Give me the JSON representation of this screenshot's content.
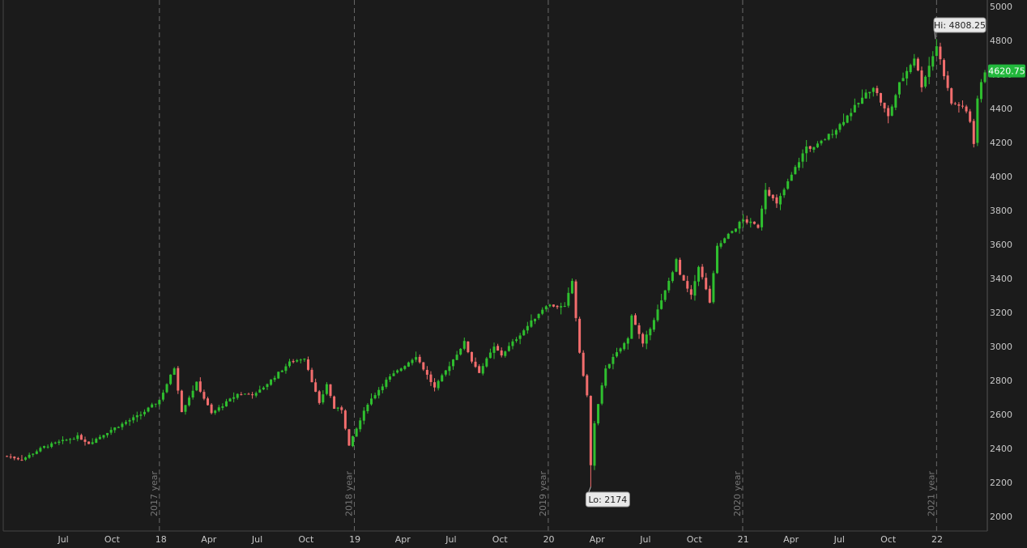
{
  "colors": {
    "background": "#1b1b1b",
    "up": "#2fbf2f",
    "down": "#f26d6d",
    "axis_text": "#c8c8c8",
    "separator": "#6a6a6a",
    "price_badge": "#22b83c"
  },
  "info_icon": "info-icon",
  "chart_data": {
    "type": "candlestick",
    "x_range": [
      "2017-03",
      "2022-03"
    ],
    "ylim": [
      1900,
      5000
    ],
    "y_ticks": [
      2000,
      2200,
      2400,
      2600,
      2800,
      3000,
      3200,
      3400,
      3600,
      3800,
      4000,
      4200,
      4400,
      4600,
      4800,
      5000
    ],
    "x_ticks": [
      {
        "date": "2017-07",
        "label": "Jul"
      },
      {
        "date": "2017-10",
        "label": "Oct"
      },
      {
        "date": "2018-01",
        "label": "18"
      },
      {
        "date": "2018-04",
        "label": "Apr"
      },
      {
        "date": "2018-07",
        "label": "Jul"
      },
      {
        "date": "2018-10",
        "label": "Oct"
      },
      {
        "date": "2019-01",
        "label": "19"
      },
      {
        "date": "2019-04",
        "label": "Apr"
      },
      {
        "date": "2019-07",
        "label": "Jul"
      },
      {
        "date": "2019-10",
        "label": "Oct"
      },
      {
        "date": "2020-01",
        "label": "20"
      },
      {
        "date": "2020-04",
        "label": "Apr"
      },
      {
        "date": "2020-07",
        "label": "Jul"
      },
      {
        "date": "2020-10",
        "label": "Oct"
      },
      {
        "date": "2021-01",
        "label": "21"
      },
      {
        "date": "2021-04",
        "label": "Apr"
      },
      {
        "date": "2021-07",
        "label": "Jul"
      },
      {
        "date": "2021-10",
        "label": "Oct"
      },
      {
        "date": "2022-01",
        "label": "22"
      }
    ],
    "year_separators": [
      {
        "date": "2017-12-29",
        "label": "2017 year"
      },
      {
        "date": "2018-12-31",
        "label": "2018 year"
      },
      {
        "date": "2019-12-31",
        "label": "2019 year"
      },
      {
        "date": "2020-12-31",
        "label": "2020 year"
      },
      {
        "date": "2021-12-31",
        "label": "2021 year"
      }
    ],
    "annotations": {
      "high": {
        "label": "Hi: 4808.25",
        "value": 4808.25,
        "date": "2021-12-29"
      },
      "low": {
        "label": "Lo: 2174",
        "value": 2174,
        "date": "2020-03-20"
      },
      "last_price": {
        "label": "4620.75",
        "value": 4620.75
      }
    },
    "anchors": [
      [
        "2017-03-17",
        2355
      ],
      [
        "2017-04-14",
        2335
      ],
      [
        "2017-05-26",
        2410
      ],
      [
        "2017-07-28",
        2470
      ],
      [
        "2017-08-18",
        2430
      ],
      [
        "2017-09-29",
        2510
      ],
      [
        "2017-11-24",
        2600
      ],
      [
        "2017-12-29",
        2685
      ],
      [
        "2018-01-26",
        2875
      ],
      [
        "2018-02-09",
        2620
      ],
      [
        "2018-03-09",
        2785
      ],
      [
        "2018-04-06",
        2605
      ],
      [
        "2018-05-25",
        2720
      ],
      [
        "2018-06-29",
        2720
      ],
      [
        "2018-08-31",
        2905
      ],
      [
        "2018-09-28",
        2935
      ],
      [
        "2018-10-26",
        2660
      ],
      [
        "2018-11-09",
        2780
      ],
      [
        "2018-11-23",
        2635
      ],
      [
        "2018-12-07",
        2630
      ],
      [
        "2018-12-21",
        2415
      ],
      [
        "2019-01-25",
        2665
      ],
      [
        "2019-03-01",
        2800
      ],
      [
        "2019-04-26",
        2945
      ],
      [
        "2019-05-31",
        2755
      ],
      [
        "2019-07-26",
        3025
      ],
      [
        "2019-08-09",
        2915
      ],
      [
        "2019-08-23",
        2850
      ],
      [
        "2019-09-20",
        2995
      ],
      [
        "2019-10-04",
        2950
      ],
      [
        "2019-11-29",
        3145
      ],
      [
        "2019-12-27",
        3245
      ],
      [
        "2020-01-31",
        3230
      ],
      [
        "2020-02-14",
        3385
      ],
      [
        "2020-02-28",
        2955
      ],
      [
        "2020-03-13",
        2710
      ],
      [
        "2020-03-20",
        2300
      ],
      [
        "2020-03-27",
        2545
      ],
      [
        "2020-04-17",
        2875
      ],
      [
        "2020-05-29",
        3045
      ],
      [
        "2020-06-05",
        3190
      ],
      [
        "2020-06-26",
        3010
      ],
      [
        "2020-07-31",
        3265
      ],
      [
        "2020-08-28",
        3505
      ],
      [
        "2020-09-04",
        3420
      ],
      [
        "2020-09-25",
        3295
      ],
      [
        "2020-10-09",
        3475
      ],
      [
        "2020-10-30",
        3260
      ],
      [
        "2020-11-13",
        3585
      ],
      [
        "2020-12-31",
        3745
      ],
      [
        "2021-01-29",
        3705
      ],
      [
        "2021-02-12",
        3930
      ],
      [
        "2021-03-05",
        3835
      ],
      [
        "2021-03-26",
        3965
      ],
      [
        "2021-04-30",
        4175
      ],
      [
        "2021-05-14",
        4165
      ],
      [
        "2021-06-25",
        4280
      ],
      [
        "2021-08-27",
        4510
      ],
      [
        "2021-09-03",
        4530
      ],
      [
        "2021-10-01",
        4350
      ],
      [
        "2021-10-22",
        4545
      ],
      [
        "2021-11-19",
        4700
      ],
      [
        "2021-12-03",
        4535
      ],
      [
        "2021-12-31",
        4770
      ],
      [
        "2022-01-28",
        4430
      ],
      [
        "2022-02-11",
        4420
      ],
      [
        "2022-02-25",
        4380
      ],
      [
        "2022-03-04",
        4325
      ],
      [
        "2022-03-11",
        4200
      ],
      [
        "2022-03-18",
        4460
      ],
      [
        "2022-03-25",
        4545
      ],
      [
        "2022-04-01",
        4620.75
      ]
    ]
  }
}
